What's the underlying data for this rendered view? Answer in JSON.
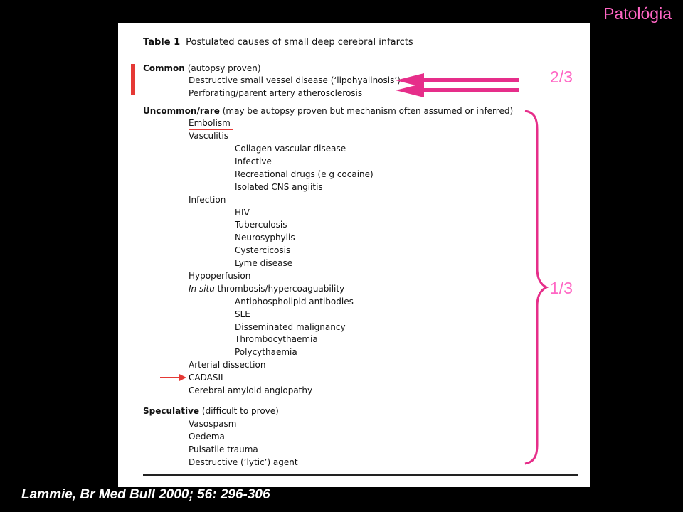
{
  "slide": {
    "title": "Patológia",
    "citation": "Lammie, Br Med Bull 2000; 56: 296-306",
    "fraction_common": "2/3",
    "fraction_uncommon": "1/3"
  },
  "table": {
    "label": "Table 1",
    "title": "Postulated causes of small deep cerebral infarcts",
    "common": {
      "head": "Common",
      "note": "(autopsy proven)",
      "items": [
        "Destructive small vessel disease (‘lipohyalinosis’)",
        "Perforating/parent artery atherosclerosis"
      ]
    },
    "uncommon": {
      "head": "Uncommon/rare",
      "note": "(may be autopsy proven but mechanism often assumed or inferred)",
      "embolism": "Embolism",
      "vasculitis": "Vasculitis",
      "vasculitis_items": [
        "Collagen vascular disease",
        "Infective",
        "Recreational drugs (e g  cocaine)",
        "Isolated CNS angiitis"
      ],
      "infection": "Infection",
      "infection_items": [
        "HIV",
        "Tuberculosis",
        "Neurosyphylis",
        "Cystercicosis",
        "Lyme disease"
      ],
      "hypoperfusion": "Hypoperfusion",
      "insitu_italic": "In situ",
      "insitu_rest": " thrombosis/hypercoaguability",
      "insitu_items": [
        "Antiphospholipid antibodies",
        "SLE",
        "Disseminated malignancy",
        "Thrombocythaemia",
        "Polycythaemia"
      ],
      "arterial_dissection": "Arterial dissection",
      "cadasil": "CADASIL",
      "amyloid": "Cerebral amyloid angiopathy"
    },
    "speculative": {
      "head": "Speculative",
      "note": "(difficult to prove)",
      "items": [
        "Vasospasm",
        "Oedema",
        "Pulsatile trauma",
        "Destructive (‘lytic’) agent"
      ]
    }
  },
  "colors": {
    "pink": "#ff66c4",
    "magenta_arrow": "#e62e8a",
    "red_marker": "#e53935"
  }
}
